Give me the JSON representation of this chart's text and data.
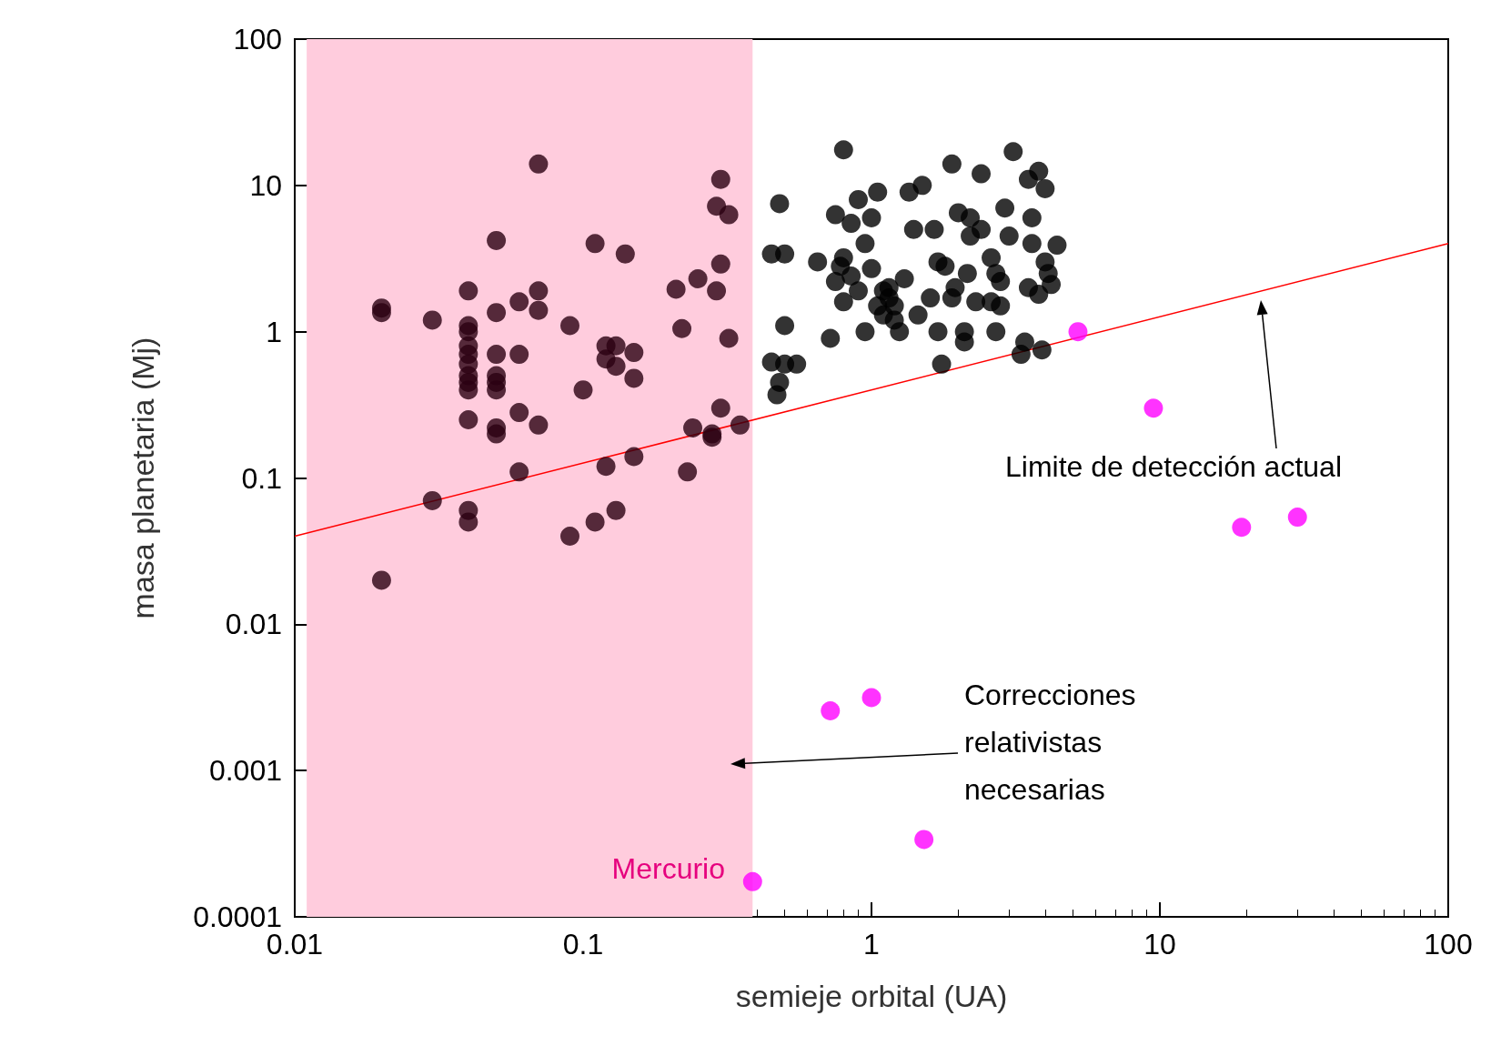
{
  "chart_data": {
    "type": "scatter",
    "xlabel": "semieje orbital (UA)",
    "ylabel": "masa planetaria (Mj)",
    "log": "xy",
    "xlim": [
      0.01,
      100
    ],
    "xticks": [
      0.01,
      0.1,
      1,
      10,
      100
    ],
    "ylim": [
      0.0001,
      100
    ],
    "yticks": [
      0.0001,
      0.001,
      0.01,
      0.1,
      1,
      10,
      100
    ],
    "grid": false,
    "marker": "circle",
    "bands": [
      {
        "axis": "x",
        "from": 0.011,
        "to": 0.387,
        "color": "#ffccdd"
      }
    ],
    "annotations": [
      "Limite de detección actual",
      "Correcciones relativistas necesarias",
      "Mercurio"
    ],
    "series": [
      {
        "color": "#2b0012",
        "x": [
          0.02,
          0.02,
          0.03,
          0.04,
          0.04,
          0.04,
          0.04,
          0.04,
          0.04,
          0.04,
          0.04,
          0.04,
          0.04,
          0.05,
          0.05,
          0.05,
          0.05,
          0.05,
          0.05,
          0.05,
          0.05,
          0.06,
          0.06,
          0.06,
          0.06,
          0.07,
          0.07,
          0.07,
          0.07,
          0.09,
          0.1,
          0.11,
          0.12,
          0.12,
          0.13,
          0.13,
          0.14,
          0.15,
          0.15,
          0.21,
          0.22,
          0.25,
          0.29,
          0.3,
          0.29,
          0.32,
          0.3,
          0.32,
          0.3,
          0.28,
          0.35,
          0.24,
          0.23,
          0.15,
          0.12,
          0.03,
          0.04,
          0.04,
          0.09,
          0.11,
          0.13,
          0.02,
          0.28
        ],
        "values": [
          1.45,
          1.35,
          1.2,
          1.9,
          1.1,
          1.0,
          0.8,
          0.7,
          0.6,
          0.5,
          0.45,
          0.4,
          0.25,
          1.35,
          0.7,
          0.5,
          0.45,
          0.4,
          0.22,
          0.2,
          4.2,
          1.6,
          0.7,
          0.28,
          0.11,
          14,
          1.9,
          1.4,
          0.23,
          1.1,
          0.4,
          4,
          0.8,
          0.65,
          0.8,
          0.58,
          3.4,
          0.72,
          0.48,
          1.95,
          1.05,
          2.3,
          1.9,
          11,
          7.2,
          6.3,
          2.9,
          0.9,
          0.3,
          0.2,
          0.23,
          0.22,
          0.11,
          0.14,
          0.12,
          0.07,
          0.06,
          0.05,
          0.04,
          0.05,
          0.06,
          0.02,
          0.19
        ]
      },
      {
        "color": "#000000",
        "x": [
          0.45,
          0.5,
          0.48,
          0.5,
          0.45,
          0.5,
          0.55,
          0.48,
          0.47,
          0.65,
          0.72,
          0.8,
          0.75,
          0.8,
          0.78,
          0.75,
          0.8,
          0.85,
          0.9,
          0.85,
          0.9,
          0.95,
          0.95,
          1.0,
          1.0,
          1.05,
          1.1,
          1.05,
          1.1,
          1.15,
          1.2,
          1.2,
          1.25,
          1.3,
          1.35,
          1.4,
          1.45,
          1.5,
          1.6,
          1.65,
          1.7,
          1.8,
          1.9,
          1.7,
          1.75,
          1.9,
          2.0,
          2.1,
          2.1,
          2.2,
          2.2,
          2.3,
          2.4,
          2.4,
          2.6,
          2.7,
          2.6,
          2.8,
          2.9,
          2.7,
          3.0,
          2.8,
          3.1,
          3.3,
          3.4,
          3.5,
          3.5,
          3.8,
          4.0,
          3.6,
          3.6,
          3.9,
          4.0,
          4.1,
          4.2,
          3.8,
          4.4,
          1.95,
          2.15,
          1.15
        ],
        "values": [
          3.4,
          3.4,
          7.5,
          1.1,
          0.62,
          0.6,
          0.6,
          0.45,
          0.37,
          3,
          0.9,
          17.5,
          6.3,
          3.2,
          2.8,
          2.2,
          1.6,
          2.4,
          1.9,
          5.5,
          8,
          4,
          1.0,
          2.7,
          6,
          9,
          1.9,
          1.5,
          1.3,
          1.7,
          1.5,
          1.2,
          1.0,
          2.3,
          9,
          5,
          1.3,
          10,
          1.7,
          5,
          3,
          2.8,
          1.7,
          1.0,
          0.6,
          14,
          6.5,
          1.0,
          0.85,
          6,
          4.5,
          1.6,
          5,
          12,
          3.2,
          2.5,
          1.6,
          1.5,
          7,
          1.0,
          4.5,
          2.2,
          17,
          0.7,
          0.85,
          2.0,
          11,
          12.5,
          9.5,
          6,
          4,
          0.75,
          3,
          2.5,
          2.1,
          1.8,
          3.9,
          2.0,
          2.5,
          2.0
        ]
      },
      {
        "color": "#ff00ff",
        "x": [
          0.387,
          0.72,
          1.0,
          1.52,
          5.2,
          9.5,
          19.2,
          30
        ],
        "values": [
          0.000174,
          0.00256,
          0.00315,
          0.000338,
          1.0,
          0.3,
          0.046,
          0.054
        ]
      },
      {
        "type": "line",
        "color": "#ff0000",
        "marker": "none",
        "x": [
          0.01,
          100
        ],
        "values": [
          0.04,
          4
        ]
      }
    ]
  }
}
